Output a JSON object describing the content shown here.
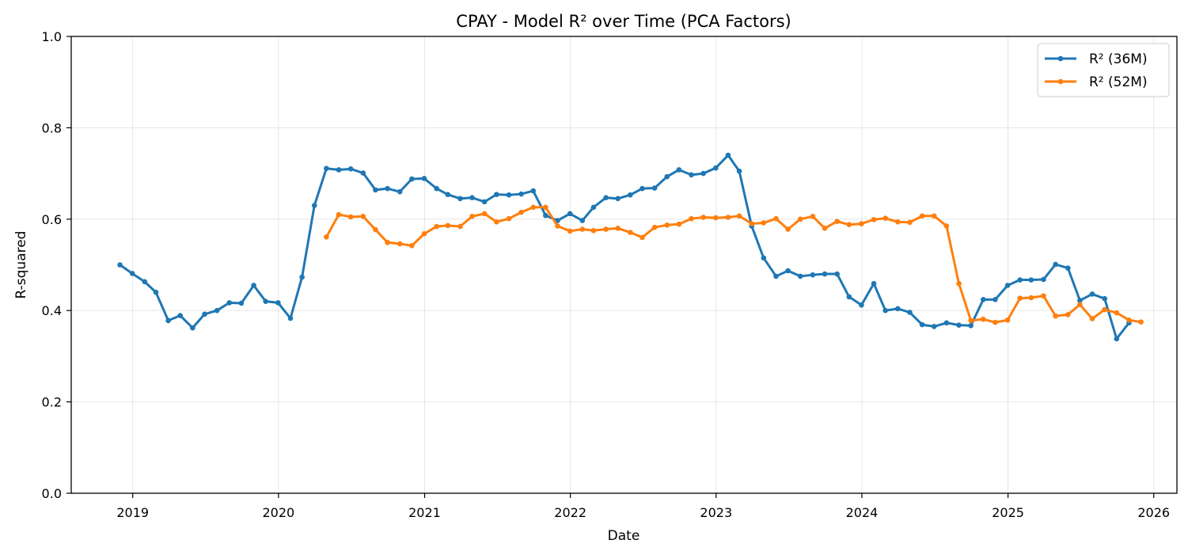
{
  "chart_data": {
    "type": "line",
    "title": "CPAY - Model R² over Time (PCA Factors)",
    "xlabel": "Date",
    "ylabel": "R-squared",
    "ylim": [
      0.0,
      1.0
    ],
    "xlim": [
      "2018-07-31",
      "2026-02-28"
    ],
    "yticks": [
      "0.0",
      "0.2",
      "0.4",
      "0.6",
      "0.8",
      "1.0"
    ],
    "xticks": [
      "2019",
      "2020",
      "2021",
      "2022",
      "2023",
      "2024",
      "2025",
      "2026"
    ],
    "grid": true,
    "legend": "top-right",
    "series": [
      {
        "name": "R² (36M)",
        "color": "#1f77b4",
        "start": "2018-11",
        "values": [
          0.5,
          0.481,
          0.463,
          0.44,
          0.378,
          0.389,
          0.362,
          0.392,
          0.4,
          0.417,
          0.416,
          0.455,
          0.42,
          0.417,
          0.383,
          0.473,
          0.63,
          0.711,
          0.708,
          0.71,
          0.701,
          0.664,
          0.667,
          0.66,
          0.688,
          0.689,
          0.667,
          0.654,
          0.645,
          0.647,
          0.638,
          0.654,
          0.653,
          0.655,
          0.662,
          0.608,
          0.597,
          0.612,
          0.597,
          0.626,
          0.647,
          0.645,
          0.653,
          0.667,
          0.668,
          0.693,
          0.708,
          0.697,
          0.7,
          0.712,
          0.74,
          0.705,
          0.585,
          0.515,
          0.475,
          0.487,
          0.475,
          0.478,
          0.48,
          0.48,
          0.43,
          0.412,
          0.459,
          0.4,
          0.404,
          0.396,
          0.369,
          0.365,
          0.373,
          0.368,
          0.367,
          0.424,
          0.424,
          0.455,
          0.467,
          0.467,
          0.468,
          0.501,
          0.493,
          0.422,
          0.436,
          0.426,
          0.338,
          0.373
        ]
      },
      {
        "name": "R² (52M)",
        "color": "#ff7f0e",
        "start": "2020-04",
        "values": [
          0.561,
          0.61,
          0.605,
          0.606,
          0.577,
          0.549,
          0.546,
          0.542,
          0.568,
          0.584,
          0.586,
          0.584,
          0.606,
          0.612,
          0.594,
          0.601,
          0.615,
          0.626,
          0.626,
          0.585,
          0.574,
          0.578,
          0.575,
          0.578,
          0.58,
          0.571,
          0.56,
          0.582,
          0.587,
          0.589,
          0.601,
          0.604,
          0.603,
          0.604,
          0.607,
          0.59,
          0.592,
          0.601,
          0.578,
          0.6,
          0.606,
          0.58,
          0.595,
          0.588,
          0.59,
          0.599,
          0.602,
          0.594,
          0.593,
          0.607,
          0.607,
          0.585,
          0.459,
          0.378,
          0.381,
          0.374,
          0.379,
          0.427,
          0.428,
          0.432,
          0.388,
          0.391,
          0.413,
          0.382,
          0.402,
          0.395,
          0.379,
          0.375
        ]
      }
    ]
  }
}
